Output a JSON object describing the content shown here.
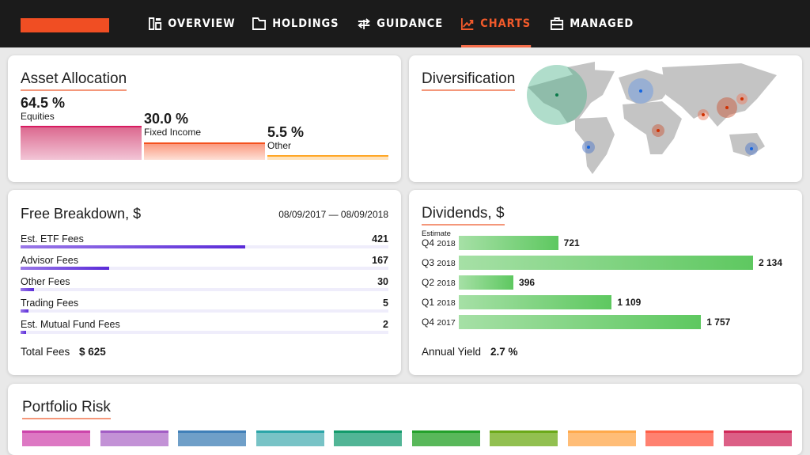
{
  "nav": {
    "tabs": [
      {
        "label": "OVERVIEW",
        "icon": "dashboard-icon"
      },
      {
        "label": "HOLDINGS",
        "icon": "folder-icon"
      },
      {
        "label": "GUIDANCE",
        "icon": "signpost-icon"
      },
      {
        "label": "CHARTS",
        "icon": "chart-line-icon",
        "active": true
      },
      {
        "label": "MANAGED",
        "icon": "briefcase-icon"
      }
    ],
    "accent": "#f04e23"
  },
  "asset_allocation": {
    "title": "Asset Allocation",
    "items": [
      {
        "pct": "64.5 %",
        "label": "Equities",
        "value": 64.5,
        "color": "#d81b60"
      },
      {
        "pct": "30.0 %",
        "label": "Fixed Income",
        "value": 30.0,
        "color": "#f4511e"
      },
      {
        "pct": "5.5 %",
        "label": "Other",
        "value": 5.5,
        "color": "#ffa726"
      }
    ]
  },
  "diversification": {
    "title": "Diversification"
  },
  "fees": {
    "title": "Free Breakdown, $",
    "range": "08/09/2017 — 08/09/2018",
    "items": [
      {
        "label": "Est. ETF Fees",
        "value": "421",
        "fraction": 0.61
      },
      {
        "label": "Advisor Fees",
        "value": "167",
        "fraction": 0.24
      },
      {
        "label": "Other Fees",
        "value": "30",
        "fraction": 0.037
      },
      {
        "label": "Trading Fees",
        "value": "5",
        "fraction": 0.022
      },
      {
        "label": "Est. Mutual Fund Fees",
        "value": "2",
        "fraction": 0.016
      }
    ],
    "total_label": "Total Fees",
    "total_value": "$ 625"
  },
  "dividends": {
    "title": "Dividends, $",
    "estimate_label": "Estimate",
    "items": [
      {
        "q": "Q4",
        "year": "2018",
        "value": 721,
        "display": "721"
      },
      {
        "q": "Q3",
        "year": "2018",
        "value": 2134,
        "display": "2 134"
      },
      {
        "q": "Q2",
        "year": "2018",
        "value": 396,
        "display": "396"
      },
      {
        "q": "Q1",
        "year": "2018",
        "value": 1109,
        "display": "1 109"
      },
      {
        "q": "Q4",
        "year": "2017",
        "value": 1757,
        "display": "1 757"
      }
    ],
    "yield_label": "Annual Yield",
    "yield_value": "2.7 %"
  },
  "risk": {
    "title": "Portfolio Risk",
    "colors": [
      "#dd78c3",
      "#c392d6",
      "#6f9fc8",
      "#78c3c6",
      "#52b596",
      "#59b85a",
      "#92c050",
      "#ffbd77",
      "#ff8170",
      "#dc5f86"
    ],
    "tops": [
      "#cc44aa",
      "#a25cc4",
      "#3f7fb8",
      "#2aa5a8",
      "#129a6a",
      "#23a02a",
      "#6aa818",
      "#ffa94a",
      "#ff5e45",
      "#d02858"
    ]
  }
}
